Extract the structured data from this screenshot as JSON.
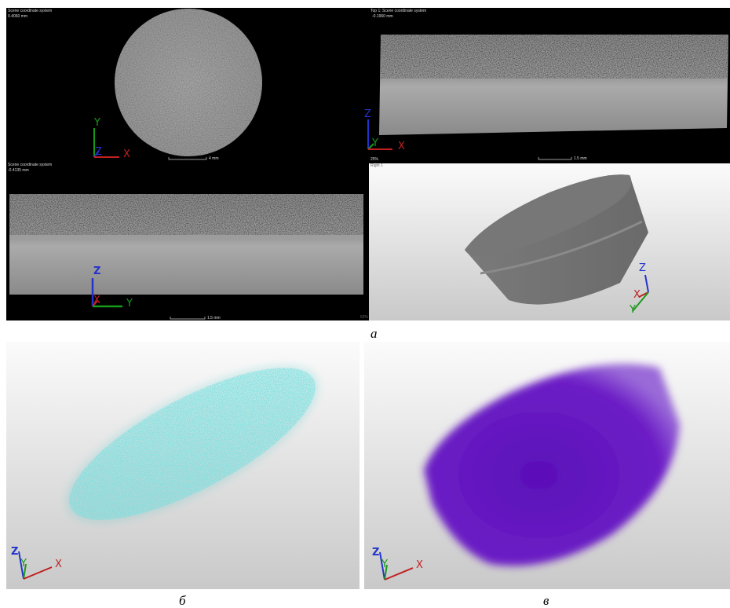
{
  "panels": [
    {
      "label": "а",
      "views": [
        {
          "caption": "Scene coordinate system",
          "value": "0.4060 mm",
          "scale": "4 mm",
          "axes": [
            "Y",
            "Z",
            "X"
          ]
        },
        {
          "caption": "Top 1: Scene coordinate system",
          "value": "-0.1960 mm",
          "scale": "1.5 mm",
          "zoom": "25%",
          "axes": [
            "Z",
            "Y",
            "X"
          ]
        },
        {
          "caption": "Scene coordinate system",
          "value": "-0.4135 mm",
          "scale": "1.5 mm",
          "axes": [
            "Z",
            "X",
            "Y"
          ]
        },
        {
          "caption": "Right 1",
          "zoom": "62%",
          "axes": [
            "Z",
            "X",
            "Y"
          ]
        }
      ]
    },
    {
      "label": "б",
      "axes": [
        "Z",
        "Y",
        "X"
      ]
    },
    {
      "label": "в",
      "axes": [
        "Z",
        "Y",
        "X"
      ]
    }
  ]
}
